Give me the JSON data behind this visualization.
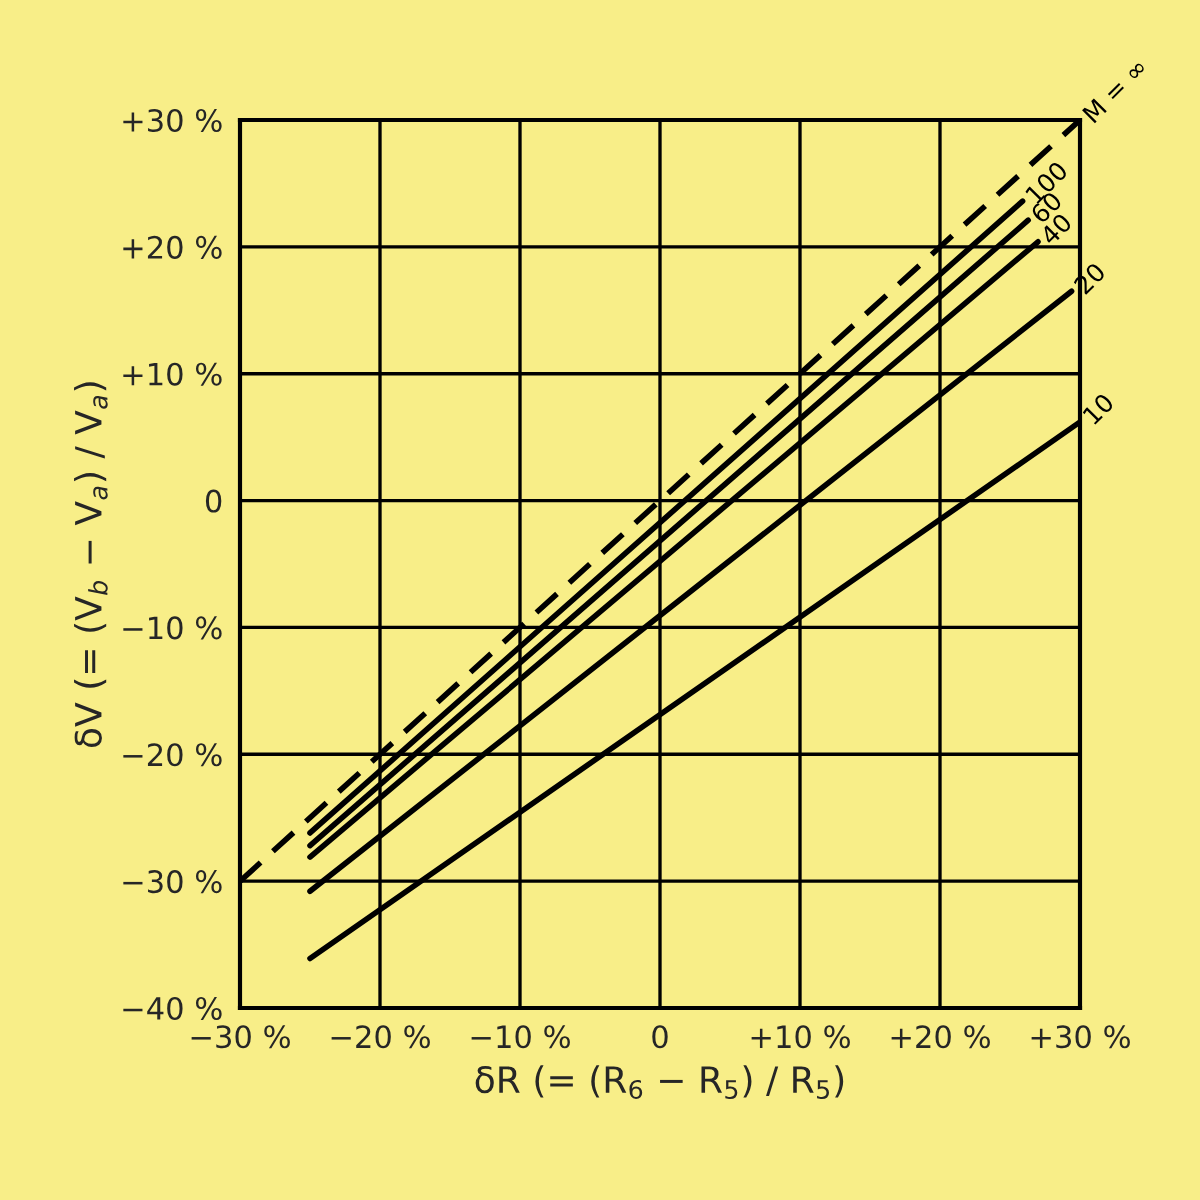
{
  "chart_data": {
    "type": "line",
    "xlabel": "δR (= (R$_{6}$ − R$_{5}$) / R$_{5}$)",
    "ylabel": "δV (= (V$_{b}$ − V$_{a}$) / V$_{a}$)",
    "xlim": [
      -30,
      30
    ],
    "ylim": [
      -40,
      30
    ],
    "xticks": [
      {
        "value": -30,
        "label": "−30 %"
      },
      {
        "value": -20,
        "label": "−20 %"
      },
      {
        "value": -10,
        "label": "−10 %"
      },
      0,
      {
        "value": 10,
        "label": "+10 %"
      },
      {
        "value": 20,
        "label": "+20 %"
      },
      {
        "value": 30,
        "label": "+30 %"
      }
    ],
    "yticks": [
      {
        "value": -40,
        "label": "−40 %"
      },
      {
        "value": -30,
        "label": "−30 %"
      },
      {
        "value": -20,
        "label": "−20 %"
      },
      {
        "value": -10,
        "label": "−10 %"
      },
      0,
      {
        "value": 10,
        "label": "+10 %"
      },
      {
        "value": 20,
        "label": "+20 %"
      },
      {
        "value": 30,
        "label": "+30 %"
      }
    ],
    "grid": true,
    "legend": false,
    "marker": "none",
    "series": [
      {
        "name": "M = ∞",
        "color": "#000000",
        "line_style": "dashed",
        "x": [
          -30,
          30
        ],
        "values": [
          -30,
          30
        ]
      },
      {
        "name": "100",
        "color": "#000000",
        "line_style": "solid",
        "x": [
          -25,
          25.9
        ],
        "values": [
          -26.2,
          23.6
        ]
      },
      {
        "name": "60",
        "color": "#000000",
        "line_style": "solid",
        "x": [
          -25,
          26.3
        ],
        "values": [
          -27.2,
          22.1
        ]
      },
      {
        "name": "40",
        "color": "#000000",
        "line_style": "solid",
        "x": [
          -25,
          27
        ],
        "values": [
          -28.1,
          20.4
        ]
      },
      {
        "name": "20",
        "color": "#000000",
        "line_style": "solid",
        "x": [
          -25,
          29.4
        ],
        "values": [
          -30.8,
          16.5
        ]
      },
      {
        "name": "10",
        "color": "#000000",
        "line_style": "solid",
        "x": [
          -25,
          30
        ],
        "values": [
          -36.1,
          6.2
        ]
      }
    ]
  }
}
